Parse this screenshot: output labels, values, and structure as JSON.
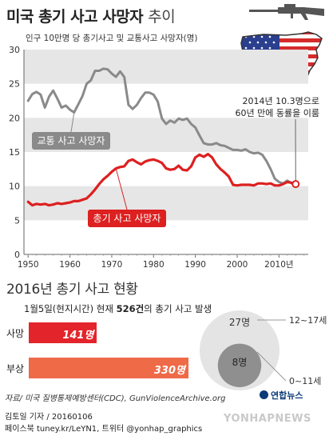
{
  "header": {
    "title": "미국 총기 사고 사망자",
    "subtitle": "추이",
    "unit_note": "인구 10만명 당 총기사고 및 교통사고 사망자(명)"
  },
  "chart_data": {
    "type": "line",
    "ylim": [
      0,
      30
    ],
    "xlim": [
      1949,
      2017
    ],
    "yticks": [
      "0",
      "5",
      "10",
      "15",
      "20",
      "25",
      "30"
    ],
    "xticks": [
      "1950",
      "1960",
      "1970",
      "1980",
      "1990",
      "2000",
      "2010년"
    ],
    "xtick_values": [
      1950,
      1960,
      1970,
      1980,
      1990,
      2000,
      2010
    ],
    "grid_bands": [
      [
        5,
        10
      ],
      [
        15,
        20
      ],
      [
        25,
        30
      ]
    ],
    "series": [
      {
        "name": "교통 사고 사망자",
        "color": "#8a8a8a",
        "x": [
          1950,
          1951,
          1952,
          1953,
          1954,
          1955,
          1956,
          1957,
          1958,
          1959,
          1960,
          1961,
          1962,
          1963,
          1964,
          1965,
          1966,
          1967,
          1968,
          1969,
          1970,
          1971,
          1972,
          1973,
          1974,
          1975,
          1976,
          1977,
          1978,
          1979,
          1980,
          1981,
          1982,
          1983,
          1984,
          1985,
          1986,
          1987,
          1988,
          1989,
          1990,
          1991,
          1992,
          1993,
          1994,
          1995,
          1996,
          1997,
          1998,
          1999,
          2000,
          2001,
          2002,
          2003,
          2004,
          2005,
          2006,
          2007,
          2008,
          2009,
          2010,
          2011,
          2012,
          2013,
          2014
        ],
        "y": [
          22.5,
          23.5,
          23.8,
          23.4,
          21.5,
          23.1,
          24.0,
          22.8,
          21.5,
          21.8,
          21.2,
          20.8,
          22.0,
          23.2,
          25.0,
          25.5,
          26.9,
          26.9,
          27.2,
          27.1,
          26.5,
          26.0,
          26.8,
          26.0,
          21.9,
          21.3,
          21.9,
          22.9,
          23.7,
          23.7,
          23.4,
          22.4,
          19.9,
          19.1,
          19.6,
          19.3,
          19.9,
          19.7,
          19.9,
          19.1,
          18.6,
          17.4,
          16.3,
          16.1,
          16.1,
          16.3,
          16.0,
          15.9,
          15.6,
          15.3,
          15.3,
          15.2,
          15.4,
          15.0,
          14.8,
          14.9,
          14.6,
          13.7,
          12.5,
          11.1,
          10.6,
          10.4,
          10.8,
          10.4,
          10.3
        ]
      },
      {
        "name": "총기 사고 사망자",
        "color": "#dd2020",
        "x": [
          1950,
          1951,
          1952,
          1953,
          1954,
          1955,
          1956,
          1957,
          1958,
          1959,
          1960,
          1961,
          1962,
          1963,
          1964,
          1965,
          1966,
          1967,
          1968,
          1969,
          1970,
          1971,
          1972,
          1973,
          1974,
          1975,
          1976,
          1977,
          1978,
          1979,
          1980,
          1981,
          1982,
          1983,
          1984,
          1985,
          1986,
          1987,
          1988,
          1989,
          1990,
          1991,
          1992,
          1993,
          1994,
          1995,
          1996,
          1997,
          1998,
          1999,
          2000,
          2001,
          2002,
          2003,
          2004,
          2005,
          2006,
          2007,
          2008,
          2009,
          2010,
          2011,
          2012,
          2013,
          2014
        ],
        "y": [
          7.7,
          7.2,
          7.4,
          7.3,
          7.4,
          7.2,
          7.3,
          7.5,
          7.4,
          7.5,
          7.6,
          7.8,
          7.8,
          8.0,
          8.2,
          8.8,
          9.5,
          10.3,
          11.0,
          11.5,
          12.1,
          12.6,
          12.8,
          12.9,
          13.7,
          13.9,
          13.5,
          13.2,
          13.6,
          13.8,
          13.9,
          13.7,
          13.4,
          12.6,
          12.4,
          12.5,
          13.0,
          12.4,
          12.3,
          12.9,
          14.2,
          14.6,
          14.3,
          14.7,
          14.2,
          13.2,
          12.5,
          12.0,
          11.4,
          10.2,
          10.1,
          10.2,
          10.2,
          10.2,
          10.1,
          10.4,
          10.4,
          10.3,
          10.4,
          10.1,
          10.1,
          10.3,
          10.6,
          10.5,
          10.3
        ]
      }
    ],
    "annotation": {
      "line1": "2014년 10.3명으로",
      "line2": "60년 만에 동률을 이룸",
      "x": 2014,
      "y": 10.3
    }
  },
  "status_section": {
    "title": "2016년 총기 사고 현황",
    "date": "1월5일(현지시간)",
    "sub_text": " 현재 ",
    "count": "526건",
    "suffix": "의 총기 사고 발생",
    "bars": [
      {
        "label": "사망",
        "value_text": "141명",
        "value": 141,
        "color": "#e3242b"
      },
      {
        "label": "부상",
        "value_text": "330명",
        "value": 330,
        "color": "#ef6a47"
      }
    ],
    "bar_max": 330,
    "circles": [
      {
        "count": "27명",
        "age": "12~17세",
        "value": 27,
        "color": "#e4e4e4"
      },
      {
        "count": "8명",
        "age": "0~11세",
        "value": 8,
        "color": "#8f8f8f"
      }
    ]
  },
  "footer": {
    "source": "자료/ 미국 질병통제예방센터(CDC), GunViolenceArchive.org",
    "credit1": "김토일 기자 / 20160106",
    "credit2": "페이스북 tuney.kr/LeYN1, 트위터 @yonhap_graphics",
    "logo": "연합뉴스",
    "watermark": "YONHAPNEWS"
  }
}
